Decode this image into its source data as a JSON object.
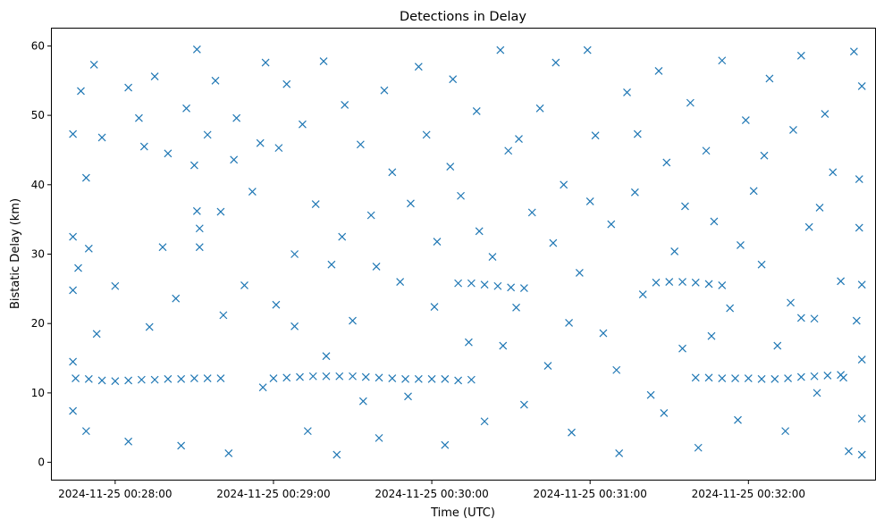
{
  "chart_data": {
    "type": "scatter",
    "title": "Detections in Delay",
    "xlabel": "Time (UTC)",
    "ylabel": "Bistatic Delay (km)",
    "x_unit": "time (UTC)",
    "xlim": [
      "2024-11-25 00:27:36",
      "2024-11-25 00:32:48"
    ],
    "ylim": [
      -2.5,
      62.5
    ],
    "x_ticks": [
      "2024-11-25 00:28:00",
      "2024-11-25 00:29:00",
      "2024-11-25 00:30:00",
      "2024-11-25 00:31:00",
      "2024-11-25 00:32:00"
    ],
    "y_ticks": [
      0,
      10,
      20,
      30,
      40,
      50,
      60
    ],
    "marker": "x",
    "color": "#1f77b4",
    "grid": false,
    "legend": "none",
    "series": [
      {
        "points": [
          [
            "2024-11-25 00:27:45",
            12.1
          ],
          [
            "2024-11-25 00:27:50",
            12.0
          ],
          [
            "2024-11-25 00:27:55",
            11.8
          ],
          [
            "2024-11-25 00:28:00",
            11.7
          ],
          [
            "2024-11-25 00:28:05",
            11.8
          ],
          [
            "2024-11-25 00:28:10",
            11.9
          ],
          [
            "2024-11-25 00:28:15",
            11.9
          ],
          [
            "2024-11-25 00:28:20",
            12.0
          ],
          [
            "2024-11-25 00:28:25",
            12.0
          ],
          [
            "2024-11-25 00:28:30",
            12.1
          ],
          [
            "2024-11-25 00:28:35",
            12.1
          ],
          [
            "2024-11-25 00:28:40",
            12.1
          ],
          [
            "2024-11-25 00:29:00",
            12.1
          ],
          [
            "2024-11-25 00:29:05",
            12.2
          ],
          [
            "2024-11-25 00:29:10",
            12.3
          ],
          [
            "2024-11-25 00:29:15",
            12.4
          ],
          [
            "2024-11-25 00:29:20",
            12.4
          ],
          [
            "2024-11-25 00:29:25",
            12.4
          ],
          [
            "2024-11-25 00:29:30",
            12.4
          ],
          [
            "2024-11-25 00:29:35",
            12.3
          ],
          [
            "2024-11-25 00:29:40",
            12.2
          ],
          [
            "2024-11-25 00:29:45",
            12.1
          ],
          [
            "2024-11-25 00:29:50",
            12.0
          ],
          [
            "2024-11-25 00:29:55",
            12.0
          ],
          [
            "2024-11-25 00:30:00",
            12.0
          ],
          [
            "2024-11-25 00:30:05",
            12.0
          ],
          [
            "2024-11-25 00:30:10",
            11.8
          ],
          [
            "2024-11-25 00:30:15",
            11.9
          ],
          [
            "2024-11-25 00:31:40",
            12.2
          ],
          [
            "2024-11-25 00:31:45",
            12.2
          ],
          [
            "2024-11-25 00:31:50",
            12.1
          ],
          [
            "2024-11-25 00:31:55",
            12.1
          ],
          [
            "2024-11-25 00:32:00",
            12.1
          ],
          [
            "2024-11-25 00:32:05",
            12.0
          ],
          [
            "2024-11-25 00:32:10",
            12.0
          ],
          [
            "2024-11-25 00:32:15",
            12.1
          ],
          [
            "2024-11-25 00:32:20",
            12.3
          ],
          [
            "2024-11-25 00:32:25",
            12.4
          ],
          [
            "2024-11-25 00:32:30",
            12.5
          ],
          [
            "2024-11-25 00:32:35",
            12.6
          ],
          [
            "2024-11-25 00:30:10",
            25.8
          ],
          [
            "2024-11-25 00:30:15",
            25.8
          ],
          [
            "2024-11-25 00:30:20",
            25.6
          ],
          [
            "2024-11-25 00:30:25",
            25.4
          ],
          [
            "2024-11-25 00:30:30",
            25.2
          ],
          [
            "2024-11-25 00:30:35",
            25.1
          ],
          [
            "2024-11-25 00:31:25",
            25.9
          ],
          [
            "2024-11-25 00:31:30",
            26.0
          ],
          [
            "2024-11-25 00:31:35",
            26.0
          ],
          [
            "2024-11-25 00:31:40",
            25.9
          ],
          [
            "2024-11-25 00:31:45",
            25.7
          ],
          [
            "2024-11-25 00:31:50",
            25.5
          ],
          [
            "2024-11-25 00:32:20",
            20.8
          ],
          [
            "2024-11-25 00:32:25",
            20.7
          ],
          [
            "2024-11-25 00:27:44",
            47.3
          ],
          [
            "2024-11-25 00:27:47",
            53.5
          ],
          [
            "2024-11-25 00:27:49",
            41.0
          ],
          [
            "2024-11-25 00:27:52",
            57.3
          ],
          [
            "2024-11-25 00:27:44",
            32.5
          ],
          [
            "2024-11-25 00:27:46",
            28.0
          ],
          [
            "2024-11-25 00:27:50",
            30.8
          ],
          [
            "2024-11-25 00:27:44",
            24.8
          ],
          [
            "2024-11-25 00:27:44",
            14.5
          ],
          [
            "2024-11-25 00:27:44",
            7.4
          ],
          [
            "2024-11-25 00:27:53",
            18.5
          ],
          [
            "2024-11-25 00:27:49",
            4.5
          ],
          [
            "2024-11-25 00:27:55",
            46.8
          ],
          [
            "2024-11-25 00:28:00",
            25.4
          ],
          [
            "2024-11-25 00:28:05",
            54.0
          ],
          [
            "2024-11-25 00:28:05",
            3.0
          ],
          [
            "2024-11-25 00:28:09",
            49.6
          ],
          [
            "2024-11-25 00:28:11",
            45.5
          ],
          [
            "2024-11-25 00:28:15",
            55.6
          ],
          [
            "2024-11-25 00:28:13",
            19.5
          ],
          [
            "2024-11-25 00:28:18",
            31.0
          ],
          [
            "2024-11-25 00:28:20",
            44.5
          ],
          [
            "2024-11-25 00:28:23",
            23.6
          ],
          [
            "2024-11-25 00:28:25",
            2.4
          ],
          [
            "2024-11-25 00:28:27",
            51.0
          ],
          [
            "2024-11-25 00:28:30",
            42.8
          ],
          [
            "2024-11-25 00:28:31",
            59.5
          ],
          [
            "2024-11-25 00:28:31",
            36.2
          ],
          [
            "2024-11-25 00:28:32",
            31.0
          ],
          [
            "2024-11-25 00:28:35",
            47.2
          ],
          [
            "2024-11-25 00:28:38",
            55.0
          ],
          [
            "2024-11-25 00:28:41",
            21.2
          ],
          [
            "2024-11-25 00:28:43",
            1.3
          ],
          [
            "2024-11-25 00:28:46",
            49.6
          ],
          [
            "2024-11-25 00:28:49",
            25.5
          ],
          [
            "2024-11-25 00:28:52",
            39.0
          ],
          [
            "2024-11-25 00:28:55",
            46.0
          ],
          [
            "2024-11-25 00:28:57",
            57.6
          ],
          [
            "2024-11-25 00:29:01",
            22.7
          ],
          [
            "2024-11-25 00:29:05",
            54.5
          ],
          [
            "2024-11-25 00:29:08",
            30.0
          ],
          [
            "2024-11-25 00:29:11",
            48.7
          ],
          [
            "2024-11-25 00:29:13",
            4.5
          ],
          [
            "2024-11-25 00:29:16",
            37.2
          ],
          [
            "2024-11-25 00:29:19",
            57.8
          ],
          [
            "2024-11-25 00:29:22",
            28.5
          ],
          [
            "2024-11-25 00:29:24",
            1.1
          ],
          [
            "2024-11-25 00:29:27",
            51.5
          ],
          [
            "2024-11-25 00:29:30",
            20.4
          ],
          [
            "2024-11-25 00:29:33",
            45.8
          ],
          [
            "2024-11-25 00:29:37",
            35.6
          ],
          [
            "2024-11-25 00:29:40",
            3.5
          ],
          [
            "2024-11-25 00:29:42",
            53.6
          ],
          [
            "2024-11-25 00:29:45",
            41.8
          ],
          [
            "2024-11-25 00:29:48",
            26.0
          ],
          [
            "2024-11-25 00:29:51",
            9.5
          ],
          [
            "2024-11-25 00:29:55",
            57.0
          ],
          [
            "2024-11-25 00:29:58",
            47.2
          ],
          [
            "2024-11-25 00:30:02",
            31.8
          ],
          [
            "2024-11-25 00:30:05",
            2.5
          ],
          [
            "2024-11-25 00:30:08",
            55.2
          ],
          [
            "2024-11-25 00:30:11",
            38.4
          ],
          [
            "2024-11-25 00:30:14",
            17.3
          ],
          [
            "2024-11-25 00:30:17",
            50.6
          ],
          [
            "2024-11-25 00:30:20",
            5.9
          ],
          [
            "2024-11-25 00:30:23",
            29.6
          ],
          [
            "2024-11-25 00:30:26",
            59.4
          ],
          [
            "2024-11-25 00:30:29",
            44.9
          ],
          [
            "2024-11-25 00:30:32",
            22.3
          ],
          [
            "2024-11-25 00:30:35",
            8.3
          ],
          [
            "2024-11-25 00:30:38",
            36.0
          ],
          [
            "2024-11-25 00:30:41",
            51.0
          ],
          [
            "2024-11-25 00:30:44",
            13.9
          ],
          [
            "2024-11-25 00:30:47",
            57.6
          ],
          [
            "2024-11-25 00:30:50",
            40.0
          ],
          [
            "2024-11-25 00:30:53",
            4.3
          ],
          [
            "2024-11-25 00:30:56",
            27.3
          ],
          [
            "2024-11-25 00:30:59",
            59.4
          ],
          [
            "2024-11-25 00:31:02",
            47.1
          ],
          [
            "2024-11-25 00:31:05",
            18.6
          ],
          [
            "2024-11-25 00:31:08",
            34.3
          ],
          [
            "2024-11-25 00:31:11",
            1.3
          ],
          [
            "2024-11-25 00:31:14",
            53.3
          ],
          [
            "2024-11-25 00:31:17",
            38.9
          ],
          [
            "2024-11-25 00:31:20",
            24.2
          ],
          [
            "2024-11-25 00:31:23",
            9.7
          ],
          [
            "2024-11-25 00:31:26",
            56.4
          ],
          [
            "2024-11-25 00:31:29",
            43.2
          ],
          [
            "2024-11-25 00:31:32",
            30.4
          ],
          [
            "2024-11-25 00:31:35",
            16.4
          ],
          [
            "2024-11-25 00:31:38",
            51.8
          ],
          [
            "2024-11-25 00:31:41",
            2.1
          ],
          [
            "2024-11-25 00:31:44",
            44.9
          ],
          [
            "2024-11-25 00:31:47",
            34.7
          ],
          [
            "2024-11-25 00:31:50",
            57.9
          ],
          [
            "2024-11-25 00:31:53",
            22.2
          ],
          [
            "2024-11-25 00:31:56",
            6.1
          ],
          [
            "2024-11-25 00:31:59",
            49.3
          ],
          [
            "2024-11-25 00:32:02",
            39.1
          ],
          [
            "2024-11-25 00:32:05",
            28.5
          ],
          [
            "2024-11-25 00:32:08",
            55.3
          ],
          [
            "2024-11-25 00:32:11",
            16.8
          ],
          [
            "2024-11-25 00:32:14",
            4.5
          ],
          [
            "2024-11-25 00:32:17",
            47.9
          ],
          [
            "2024-11-25 00:32:20",
            58.6
          ],
          [
            "2024-11-25 00:32:23",
            33.9
          ],
          [
            "2024-11-25 00:32:26",
            10.0
          ],
          [
            "2024-11-25 00:32:29",
            50.2
          ],
          [
            "2024-11-25 00:32:32",
            41.8
          ],
          [
            "2024-11-25 00:32:35",
            26.1
          ],
          [
            "2024-11-25 00:32:38",
            1.6
          ],
          [
            "2024-11-25 00:32:40",
            59.2
          ],
          [
            "2024-11-25 00:32:42",
            40.8
          ],
          [
            "2024-11-25 00:32:43",
            25.6
          ],
          [
            "2024-11-25 00:32:43",
            14.8
          ],
          [
            "2024-11-25 00:32:43",
            6.3
          ],
          [
            "2024-11-25 00:32:43",
            1.1
          ],
          [
            "2024-11-25 00:32:43",
            54.2
          ],
          [
            "2024-11-25 00:32:42",
            33.8
          ],
          [
            "2024-11-25 00:32:41",
            20.4
          ],
          [
            "2024-11-25 00:28:32",
            33.7
          ],
          [
            "2024-11-25 00:28:40",
            36.1
          ],
          [
            "2024-11-25 00:28:45",
            43.6
          ],
          [
            "2024-11-25 00:28:56",
            10.8
          ],
          [
            "2024-11-25 00:29:02",
            45.3
          ],
          [
            "2024-11-25 00:29:08",
            19.6
          ],
          [
            "2024-11-25 00:29:20",
            15.3
          ],
          [
            "2024-11-25 00:29:26",
            32.5
          ],
          [
            "2024-11-25 00:29:34",
            8.8
          ],
          [
            "2024-11-25 00:29:39",
            28.2
          ],
          [
            "2024-11-25 00:29:52",
            37.3
          ],
          [
            "2024-11-25 00:30:01",
            22.4
          ],
          [
            "2024-11-25 00:30:07",
            42.6
          ],
          [
            "2024-11-25 00:30:18",
            33.3
          ],
          [
            "2024-11-25 00:30:27",
            16.8
          ],
          [
            "2024-11-25 00:30:33",
            46.6
          ],
          [
            "2024-11-25 00:30:46",
            31.6
          ],
          [
            "2024-11-25 00:30:52",
            20.1
          ],
          [
            "2024-11-25 00:31:00",
            37.6
          ],
          [
            "2024-11-25 00:31:10",
            13.3
          ],
          [
            "2024-11-25 00:31:18",
            47.3
          ],
          [
            "2024-11-25 00:31:28",
            7.1
          ],
          [
            "2024-11-25 00:31:36",
            36.9
          ],
          [
            "2024-11-25 00:31:46",
            18.2
          ],
          [
            "2024-11-25 00:31:57",
            31.3
          ],
          [
            "2024-11-25 00:32:06",
            44.2
          ],
          [
            "2024-11-25 00:32:16",
            23.0
          ],
          [
            "2024-11-25 00:32:27",
            36.7
          ],
          [
            "2024-11-25 00:32:36",
            12.2
          ]
        ]
      }
    ]
  }
}
